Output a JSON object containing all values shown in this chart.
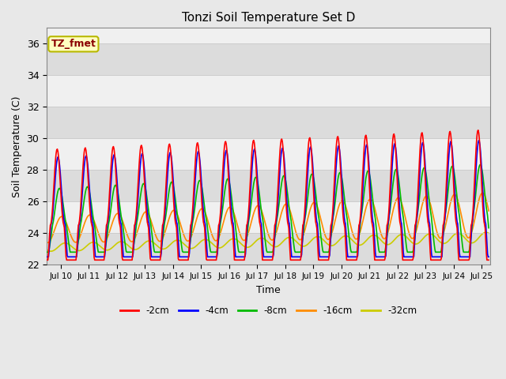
{
  "title": "Tonzi Soil Temperature Set D",
  "xlabel": "Time",
  "ylabel": "Soil Temperature (C)",
  "ylim": [
    22,
    37
  ],
  "xlim_days": [
    9.5,
    25.3
  ],
  "annotation_text": "TZ_fmet",
  "annotation_color": "#8B0000",
  "annotation_bg": "#FFFFC0",
  "annotation_border": "#B8B800",
  "legend_entries": [
    "-2cm",
    "-4cm",
    "-8cm",
    "-16cm",
    "-32cm"
  ],
  "line_colors": [
    "#FF0000",
    "#0000FF",
    "#00BB00",
    "#FF8C00",
    "#CCCC00"
  ],
  "tick_labels": [
    "Jul 10",
    "Jul 11",
    "Jul 12",
    "Jul 13",
    "Jul 14",
    "Jul 15",
    "Jul 16",
    "Jul 17",
    "Jul 18",
    "Jul 19",
    "Jul 20",
    "Jul 21",
    "Jul 22",
    "Jul 23",
    "Jul 24",
    "Jul 25"
  ],
  "tick_positions": [
    10,
    11,
    12,
    13,
    14,
    15,
    16,
    17,
    18,
    19,
    20,
    21,
    22,
    23,
    24,
    25
  ],
  "yticks": [
    22,
    24,
    26,
    28,
    30,
    32,
    34,
    36
  ],
  "shading_color": "#DCDCDC",
  "plot_bg": "#F0F0F0",
  "fig_bg": "#E8E8E8"
}
